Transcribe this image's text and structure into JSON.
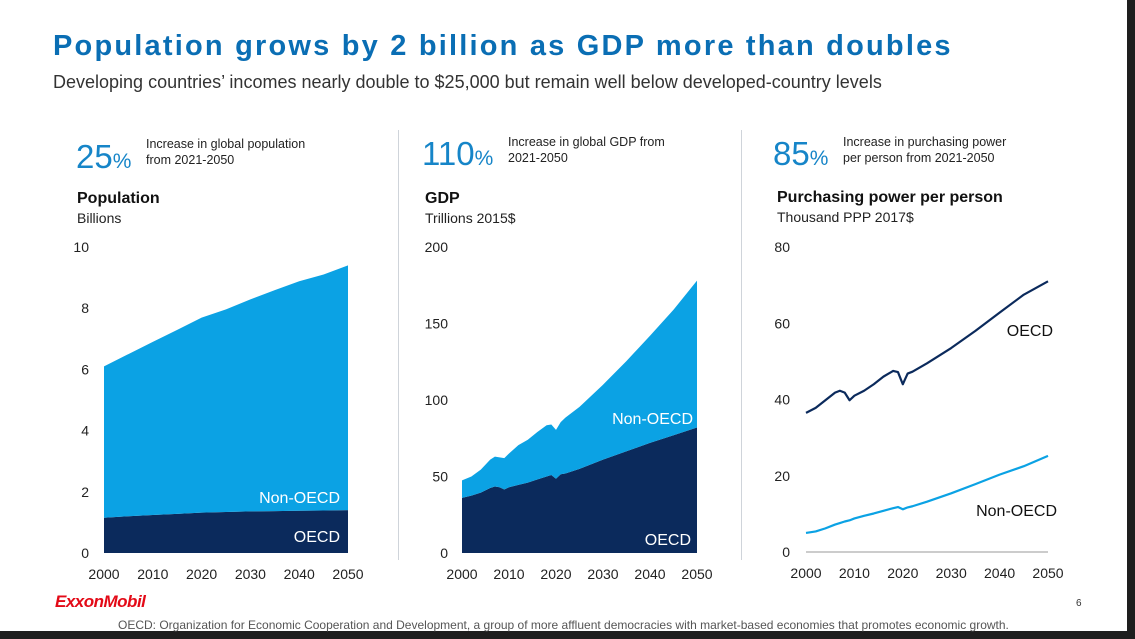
{
  "slide": {
    "title": "Population grows by 2 billion as GDP more than doubles",
    "subtitle": "Developing countries’ incomes nearly double to $25,000 but remain well below developed-country levels",
    "logo": "ExxonMobil",
    "page_number": "6",
    "footnote": "OECD: Organization for Economic Cooperation and Development, a group of more affluent democracies with market-based economies that promotes economic growth."
  },
  "colors": {
    "title": "#0a6eb4",
    "oecd": "#0b2a5c",
    "non_oecd": "#0ba2e4",
    "stat": "#1685c8",
    "logo": "#e30a17"
  },
  "panels": [
    {
      "stat_value": "25",
      "stat_unit": "%",
      "stat_desc_line1": "Increase in global population",
      "stat_desc_line2": "from 2021-2050",
      "title": "Population",
      "unit": "Billions"
    },
    {
      "stat_value": "110",
      "stat_unit": "%",
      "stat_desc_line1": "Increase in global GDP from",
      "stat_desc_line2": "2021-2050",
      "title": "GDP",
      "unit": "Trillions 2015$"
    },
    {
      "stat_value": "85",
      "stat_unit": "%",
      "stat_desc_line1": "Increase in purchasing power",
      "stat_desc_line2": "per person from 2021-2050",
      "title": "Purchasing power per person",
      "unit": "Thousand PPP 2017$"
    }
  ],
  "chart_data": [
    {
      "type": "area",
      "stacked": true,
      "title": "Population",
      "ylabel": "Billions",
      "x": [
        2000,
        2005,
        2010,
        2015,
        2020,
        2025,
        2030,
        2035,
        2040,
        2045,
        2050
      ],
      "ylim": [
        0,
        10
      ],
      "yticks": [
        0,
        2,
        4,
        6,
        8,
        10
      ],
      "xticks": [
        2000,
        2010,
        2020,
        2030,
        2040,
        2050
      ],
      "series": [
        {
          "name": "OECD",
          "values": [
            1.15,
            1.2,
            1.24,
            1.28,
            1.32,
            1.34,
            1.36,
            1.37,
            1.38,
            1.39,
            1.4
          ]
        },
        {
          "name": "Non-OECD",
          "values": [
            4.95,
            5.3,
            5.66,
            6.01,
            6.37,
            6.62,
            6.93,
            7.22,
            7.5,
            7.71,
            8.0
          ]
        }
      ],
      "series_labels": [
        "OECD",
        "Non-OECD"
      ]
    },
    {
      "type": "area",
      "stacked": true,
      "title": "GDP",
      "ylabel": "Trillions 2015$",
      "x": [
        2000,
        2002,
        2004,
        2006,
        2007,
        2008,
        2009,
        2010,
        2012,
        2014,
        2016,
        2018,
        2019,
        2020,
        2021,
        2022,
        2025,
        2030,
        2035,
        2040,
        2045,
        2050
      ],
      "ylim": [
        0,
        200
      ],
      "yticks": [
        0,
        50,
        100,
        150,
        200
      ],
      "xticks": [
        2000,
        2010,
        2020,
        2030,
        2040,
        2050
      ],
      "series": [
        {
          "name": "OECD",
          "values": [
            36,
            37.5,
            39.5,
            42.5,
            43.5,
            43,
            41.5,
            43,
            44.5,
            46,
            48,
            50,
            51,
            48.5,
            51.5,
            52,
            55,
            61,
            66.5,
            72,
            77,
            82
          ]
        },
        {
          "name": "Non-OECD",
          "values": [
            11.5,
            12.5,
            15,
            18.5,
            19.5,
            19.5,
            20.5,
            22,
            26,
            28,
            31,
            33.5,
            33,
            32,
            34,
            36.5,
            40.5,
            49,
            59,
            70,
            82,
            96
          ]
        }
      ],
      "series_labels": [
        "OECD",
        "Non-OECD"
      ]
    },
    {
      "type": "line",
      "title": "Purchasing power per person",
      "ylabel": "Thousand PPP 2017$",
      "x": [
        2000,
        2002,
        2004,
        2006,
        2007,
        2008,
        2009,
        2010,
        2012,
        2014,
        2016,
        2018,
        2019,
        2020,
        2021,
        2022,
        2025,
        2030,
        2035,
        2040,
        2045,
        2050
      ],
      "ylim": [
        0,
        80
      ],
      "yticks": [
        0,
        20,
        40,
        60,
        80
      ],
      "xticks": [
        2000,
        2010,
        2020,
        2030,
        2040,
        2050
      ],
      "series": [
        {
          "name": "OECD",
          "values": [
            36.5,
            37.8,
            39.8,
            41.8,
            42.3,
            41.8,
            39.8,
            41,
            42.3,
            44,
            46,
            47.5,
            47.2,
            44,
            46.8,
            47.3,
            49.5,
            53.5,
            58,
            62.8,
            67.5,
            71
          ]
        },
        {
          "name": "Non-OECD",
          "values": [
            5,
            5.4,
            6.2,
            7.2,
            7.6,
            8,
            8.3,
            8.8,
            9.5,
            10.1,
            10.8,
            11.5,
            11.8,
            11.2,
            11.7,
            12,
            13.2,
            15.4,
            17.8,
            20.3,
            22.5,
            25.2
          ]
        }
      ],
      "series_labels": [
        "OECD",
        "Non-OECD"
      ]
    }
  ]
}
